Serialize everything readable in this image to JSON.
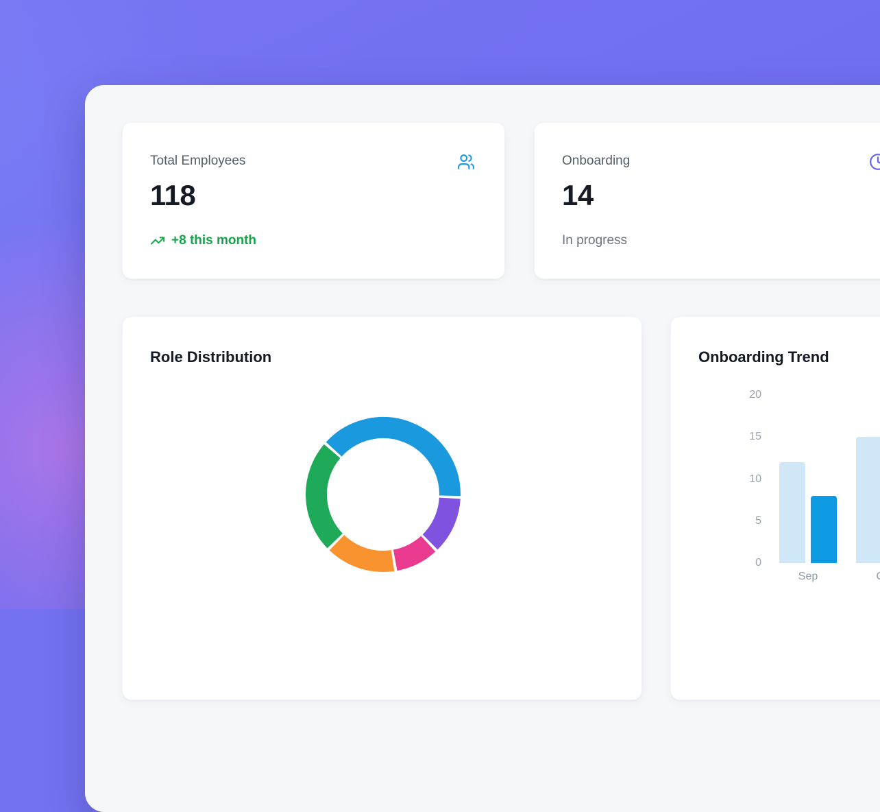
{
  "theme": {
    "background": "#7472f1",
    "background_glow_pink": "#e77ee0",
    "panel_bg": "#f6f7f9",
    "card_bg": "#ffffff",
    "text_primary": "#151a23",
    "text_secondary": "#525b68",
    "text_muted": "#6b7280",
    "axis_label": "#9aa3ae",
    "positive_green": "#17a34b",
    "icon_blue": "#1b9ae3",
    "icon_indigo": "#6761f0"
  },
  "stat_cards": [
    {
      "label": "Total Employees",
      "value": "118",
      "sub": "+8 this month",
      "sub_type": "trend-up",
      "icon": "users-icon"
    },
    {
      "label": "Onboarding",
      "value": "14",
      "sub": "In progress",
      "sub_type": "status",
      "icon": "clock-icon"
    }
  ],
  "chart_data": [
    {
      "type": "donut",
      "title": "Role Distribution",
      "legend_position": "none",
      "labels_visible": false,
      "start_angle_deg": 311.4,
      "segments": [
        {
          "name": "blue",
          "color": "#1b99de",
          "percent": 39.1
        },
        {
          "name": "purple",
          "color": "#7f53e0",
          "percent": 12.3
        },
        {
          "name": "pink",
          "color": "#ea3a90",
          "percent": 9.5
        },
        {
          "name": "orange",
          "color": "#f8932f",
          "percent": 15.1
        },
        {
          "name": "green",
          "color": "#1faa59",
          "percent": 24.0
        }
      ]
    },
    {
      "type": "bar",
      "title": "Onboarding Trend",
      "categories": [
        "Sep",
        "Oct"
      ],
      "series": [
        {
          "name": "light",
          "color": "#cfe7f7",
          "values": [
            12,
            15
          ]
        },
        {
          "name": "dark",
          "color": "#0d9ae2",
          "values": [
            8,
            null
          ]
        }
      ],
      "ylim": [
        0,
        20
      ],
      "yticks": [
        0,
        5,
        10,
        15,
        20
      ],
      "grid": false,
      "legend_position": "none"
    }
  ]
}
